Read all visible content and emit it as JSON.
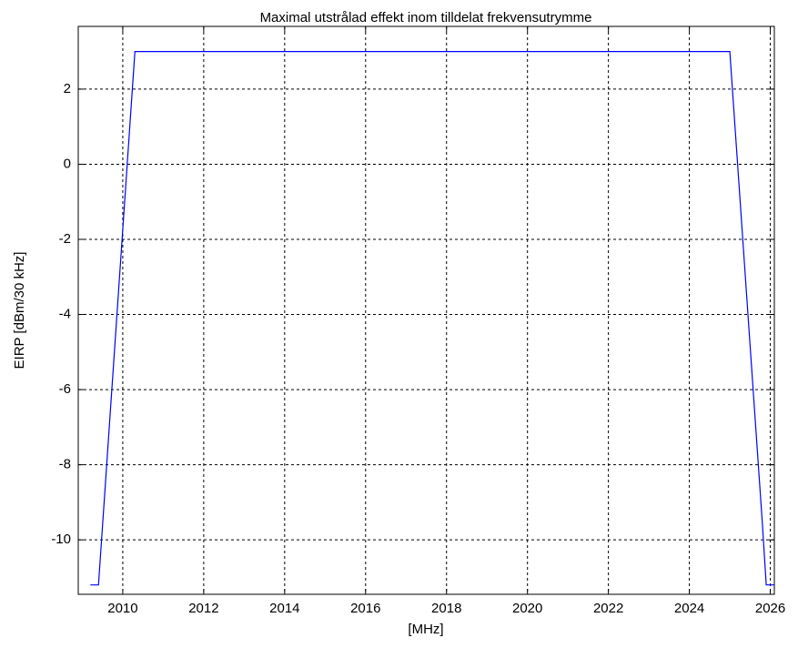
{
  "chart_data": {
    "type": "line",
    "title": "Maximal utstrålad effekt inom tilldelat frekvensutrymme",
    "xlabel": "[MHz]",
    "ylabel": "EIRP [dBm/30 kHz]",
    "x": [
      2009.2,
      2009.4,
      2010.3,
      2010.5,
      2024.8,
      2025.0,
      2025.8,
      2025.9,
      2026.1
    ],
    "series": [
      {
        "name": "EIRP",
        "color": "#0000ff",
        "values": [
          -11.2,
          -11.2,
          3,
          3,
          3,
          3,
          -9.5,
          -11.2,
          -11.2
        ]
      }
    ],
    "xlim": [
      2008.9,
      2026.1
    ],
    "ylim": [
      -11.45,
      3.67
    ],
    "xticks": [
      2010,
      2012,
      2014,
      2016,
      2018,
      2020,
      2022,
      2024,
      2026
    ],
    "yticks": [
      -10,
      -8,
      -6,
      -4,
      -2,
      0,
      2
    ],
    "grid": true
  }
}
